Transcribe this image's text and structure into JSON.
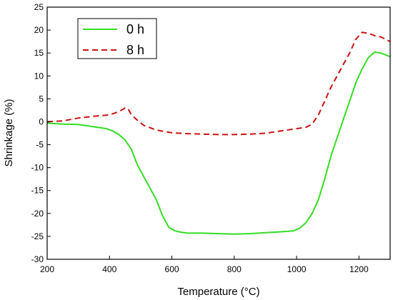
{
  "chart_data": {
    "type": "line",
    "xlabel": "Temperature (°C)",
    "ylabel": "Shrinkage (%)",
    "xlim": [
      200,
      1300
    ],
    "ylim": [
      -30,
      25
    ],
    "xticks": [
      200,
      400,
      600,
      800,
      1000,
      1200
    ],
    "yticks": [
      -30,
      -25,
      -20,
      -15,
      -10,
      -5,
      0,
      5,
      10,
      15,
      20,
      25
    ],
    "grid": false,
    "legend_position": "top-left",
    "series": [
      {
        "name": "0 h",
        "color": "#33dd22",
        "line_style": "solid",
        "x": [
          200,
          250,
          300,
          340,
          370,
          390,
          410,
          430,
          450,
          470,
          490,
          510,
          530,
          550,
          570,
          590,
          610,
          630,
          650,
          700,
          750,
          800,
          850,
          900,
          950,
          990,
          1010,
          1030,
          1050,
          1070,
          1090,
          1110,
          1130,
          1150,
          1170,
          1190,
          1210,
          1230,
          1250,
          1270,
          1300
        ],
        "y": [
          -0.3,
          -0.5,
          -0.6,
          -1.0,
          -1.3,
          -1.5,
          -2.0,
          -2.8,
          -4.0,
          -6.0,
          -9.5,
          -12.0,
          -14.5,
          -17.0,
          -20.5,
          -23.0,
          -23.8,
          -24.1,
          -24.3,
          -24.3,
          -24.4,
          -24.5,
          -24.4,
          -24.2,
          -24.0,
          -23.8,
          -23.2,
          -22.0,
          -20.0,
          -17.0,
          -12.5,
          -7.5,
          -3.5,
          0.5,
          4.5,
          8.5,
          11.5,
          14.0,
          15.2,
          15.0,
          14.2
        ]
      },
      {
        "name": "8 h",
        "color": "#cc1111",
        "line_style": "dashed",
        "x": [
          200,
          250,
          300,
          350,
          400,
          430,
          450,
          460,
          470,
          490,
          510,
          550,
          600,
          650,
          700,
          750,
          800,
          850,
          900,
          950,
          1000,
          1030,
          1050,
          1070,
          1090,
          1110,
          1130,
          1150,
          1170,
          1190,
          1210,
          1230,
          1250,
          1270,
          1300
        ],
        "y": [
          0.0,
          0.2,
          0.8,
          1.2,
          1.5,
          2.2,
          3.0,
          2.8,
          1.5,
          0.3,
          -0.8,
          -1.8,
          -2.4,
          -2.6,
          -2.7,
          -2.8,
          -2.8,
          -2.7,
          -2.5,
          -2.0,
          -1.5,
          -1.2,
          -0.5,
          1.5,
          4.5,
          7.5,
          10.0,
          12.5,
          15.0,
          18.0,
          19.5,
          19.3,
          18.8,
          18.5,
          17.5
        ]
      }
    ]
  }
}
